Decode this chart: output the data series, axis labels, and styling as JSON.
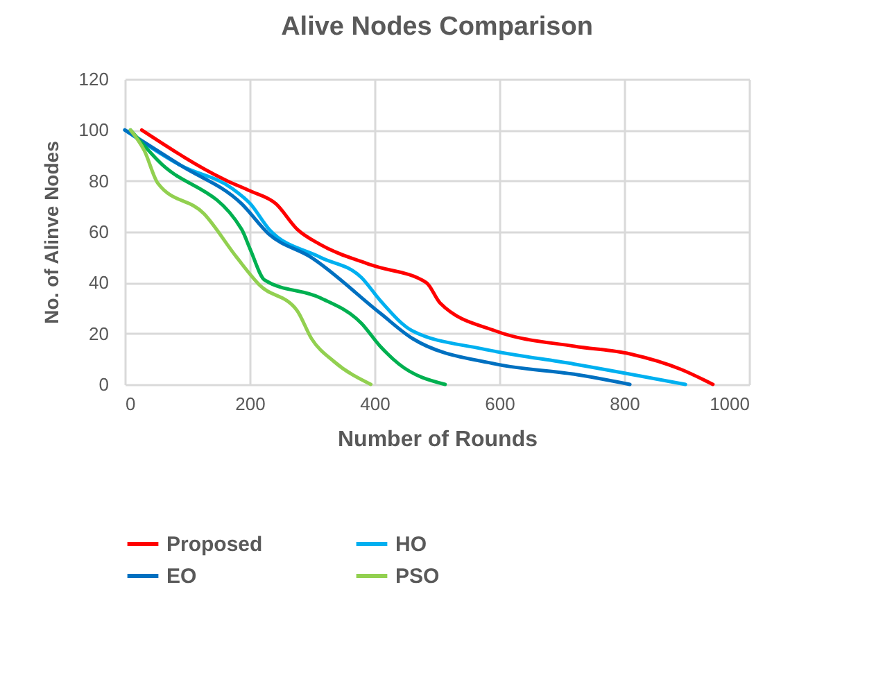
{
  "chart_data": {
    "type": "line",
    "title": "Alive Nodes Comparison",
    "xlabel": "Number of Rounds",
    "ylabel": "No. of Alinve Nodes",
    "xlim": [
      0,
      1000
    ],
    "xticks": [
      0,
      200,
      400,
      600,
      800,
      1000
    ],
    "ylim": [
      0,
      120
    ],
    "yticks": [
      0,
      20,
      40,
      60,
      80,
      100,
      120
    ],
    "grid": true,
    "legend": "bottom",
    "series": [
      {
        "name": "Proposed",
        "color": "#ff0000",
        "x": [
          27,
          164,
          201,
          242,
          276,
          313,
          394,
          483,
          505,
          594,
          720,
          809,
          890,
          942
        ],
        "values": [
          100,
          80,
          76,
          71,
          61,
          55,
          47,
          40,
          32,
          21,
          15,
          12,
          6,
          0
        ]
      },
      {
        "name": "HO",
        "color": "#00b0f0",
        "x": [
          0,
          90,
          172,
          201,
          231,
          313,
          379,
          409,
          461,
          572,
          720,
          898
        ],
        "values": [
          100,
          86,
          77,
          71,
          61,
          50,
          42,
          33,
          21,
          14,
          8,
          0
        ]
      },
      {
        "name": "EO",
        "color": "#0070c0",
        "x": [
          0,
          90,
          187,
          231,
          298,
          409,
          461,
          594,
          720,
          809
        ],
        "values": [
          100,
          86,
          71,
          59,
          50,
          28,
          18,
          8,
          4,
          0
        ]
      },
      {
        "color": "#00b050",
        "x": [
          9,
          53,
          187,
          201,
          224,
          313,
          379,
          409,
          439,
          513
        ],
        "values": [
          100,
          88,
          61,
          53,
          41,
          34,
          24,
          15,
          8,
          0
        ]
      },
      {
        "name": "PSO",
        "color": "#92d050",
        "x": [
          9,
          31,
          53,
          127,
          179,
          216,
          276,
          299,
          335,
          394
        ],
        "values": [
          100,
          92,
          79,
          67,
          50,
          39,
          29,
          18,
          9,
          0
        ]
      }
    ]
  }
}
